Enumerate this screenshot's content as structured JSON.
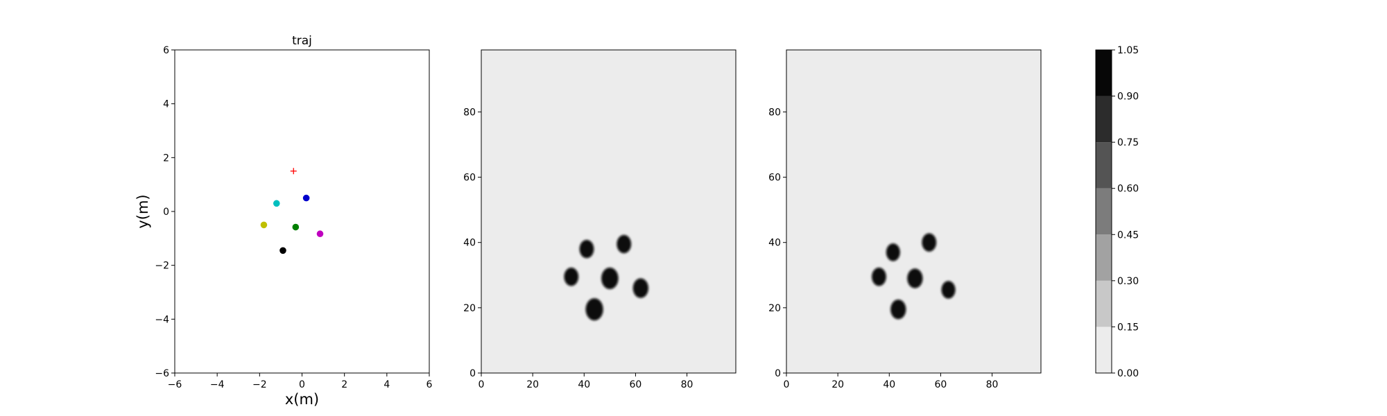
{
  "chart_data": [
    {
      "type": "scatter",
      "title": "traj",
      "xlabel": "x(m)",
      "ylabel": "y(m)",
      "xlim": [
        -6,
        6
      ],
      "ylim": [
        -6,
        6
      ],
      "xticks": [
        -6,
        -4,
        -2,
        0,
        2,
        4,
        6
      ],
      "yticks": [
        -6,
        -4,
        -2,
        0,
        2,
        4,
        6
      ],
      "grid": false,
      "target": {
        "x": -0.4,
        "y": 1.5,
        "marker": "plus",
        "color": "#ff0000"
      },
      "points": [
        {
          "x": 0.2,
          "y": 0.5,
          "color": "#0000cc"
        },
        {
          "x": -1.2,
          "y": 0.3,
          "color": "#00bfbf"
        },
        {
          "x": -1.8,
          "y": -0.5,
          "color": "#bfbf00"
        },
        {
          "x": -0.3,
          "y": -0.58,
          "color": "#007f00"
        },
        {
          "x": 0.85,
          "y": -0.83,
          "color": "#bf00bf"
        },
        {
          "x": -0.9,
          "y": -1.45,
          "color": "#000000"
        }
      ]
    },
    {
      "type": "heatmap",
      "title": "",
      "xlabel": "",
      "ylabel": "",
      "xlim": [
        0,
        99
      ],
      "ylim": [
        0,
        99
      ],
      "xticks": [
        0,
        20,
        40,
        60,
        80
      ],
      "yticks": [
        0,
        20,
        40,
        60,
        80
      ],
      "background_value": 0.05,
      "blobs": [
        {
          "x": 41,
          "y": 38,
          "r": 2.8,
          "value": 1.0
        },
        {
          "x": 55.5,
          "y": 39.5,
          "r": 2.8,
          "value": 1.0
        },
        {
          "x": 35,
          "y": 29.5,
          "r": 2.8,
          "value": 1.0
        },
        {
          "x": 50,
          "y": 29,
          "r": 3.3,
          "value": 1.0
        },
        {
          "x": 62,
          "y": 26,
          "r": 3.0,
          "value": 1.0
        },
        {
          "x": 44,
          "y": 19.5,
          "r": 3.4,
          "value": 1.0
        }
      ]
    },
    {
      "type": "heatmap",
      "title": "",
      "xlabel": "",
      "ylabel": "",
      "xlim": [
        0,
        99
      ],
      "ylim": [
        0,
        99
      ],
      "xticks": [
        0,
        20,
        40,
        60,
        80
      ],
      "yticks": [
        0,
        20,
        40,
        60,
        80
      ],
      "background_value": 0.05,
      "blobs": [
        {
          "x": 41.5,
          "y": 37,
          "r": 2.7,
          "value": 1.0
        },
        {
          "x": 55.5,
          "y": 40,
          "r": 2.8,
          "value": 1.0
        },
        {
          "x": 36,
          "y": 29.5,
          "r": 2.8,
          "value": 1.0
        },
        {
          "x": 50,
          "y": 29,
          "r": 3.0,
          "value": 1.0
        },
        {
          "x": 63,
          "y": 25.5,
          "r": 2.7,
          "value": 1.0
        },
        {
          "x": 43.5,
          "y": 19.5,
          "r": 3.0,
          "value": 1.0
        }
      ]
    }
  ],
  "colorbar": {
    "levels": [
      0.0,
      0.15,
      0.3,
      0.45,
      0.6,
      0.75,
      0.9,
      1.05
    ],
    "tick_labels": [
      "0.00",
      "0.15",
      "0.30",
      "0.45",
      "0.60",
      "0.75",
      "0.90",
      "1.05"
    ],
    "colors": [
      "#ececec",
      "#c8c8c8",
      "#a2a2a2",
      "#7c7c7c",
      "#545454",
      "#2c2c2c",
      "#070707"
    ]
  }
}
